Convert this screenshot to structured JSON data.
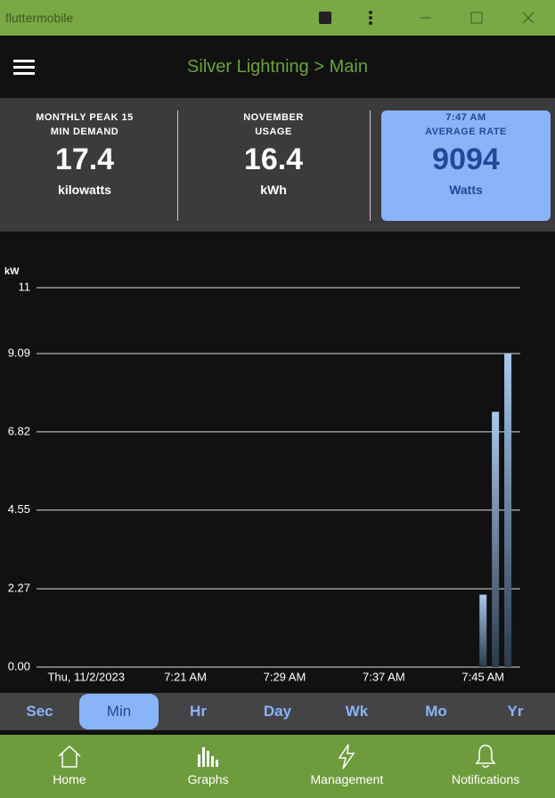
{
  "window": {
    "title": "fluttermobile"
  },
  "header": {
    "title": "Silver Lightning > Main"
  },
  "stats": [
    {
      "label": "MONTHLY PEAK 15 MIN DEMAND",
      "value": "17.4",
      "unit": "kilowatts"
    },
    {
      "label": "NOVEMBER USAGE",
      "value": "16.4",
      "unit": "kWh"
    },
    {
      "time": "7:47 AM",
      "label": "AVERAGE RATE",
      "value": "9094",
      "unit": "Watts"
    }
  ],
  "chart_data": {
    "type": "bar",
    "y_label": "kW",
    "x": [
      465,
      466,
      467
    ],
    "series": [
      {
        "name": "Power",
        "color": "#a9c8ec",
        "values": [
          2.1,
          7.4,
          9.09
        ]
      }
    ],
    "xlim": [
      429,
      468
    ],
    "xticks": [
      {
        "value": 433,
        "label": "Thu, 11/2/2023"
      },
      {
        "value": 441,
        "label": "7:21 AM"
      },
      {
        "value": 449,
        "label": "7:29 AM"
      },
      {
        "value": 457,
        "label": "7:37 AM"
      },
      {
        "value": 465,
        "label": "7:45 AM"
      }
    ],
    "ylim": [
      0,
      11
    ],
    "yticks": [
      {
        "value": 0,
        "label": "0.00"
      },
      2.27,
      4.55,
      6.82,
      9.09,
      11
    ],
    "grid": true
  },
  "tabs": {
    "items": [
      "Sec",
      "Min",
      "Hr",
      "Day",
      "Wk",
      "Mo",
      "Yr"
    ],
    "selected": 1
  },
  "nav": [
    "Home",
    "Graphs",
    "Management",
    "Notifications"
  ]
}
